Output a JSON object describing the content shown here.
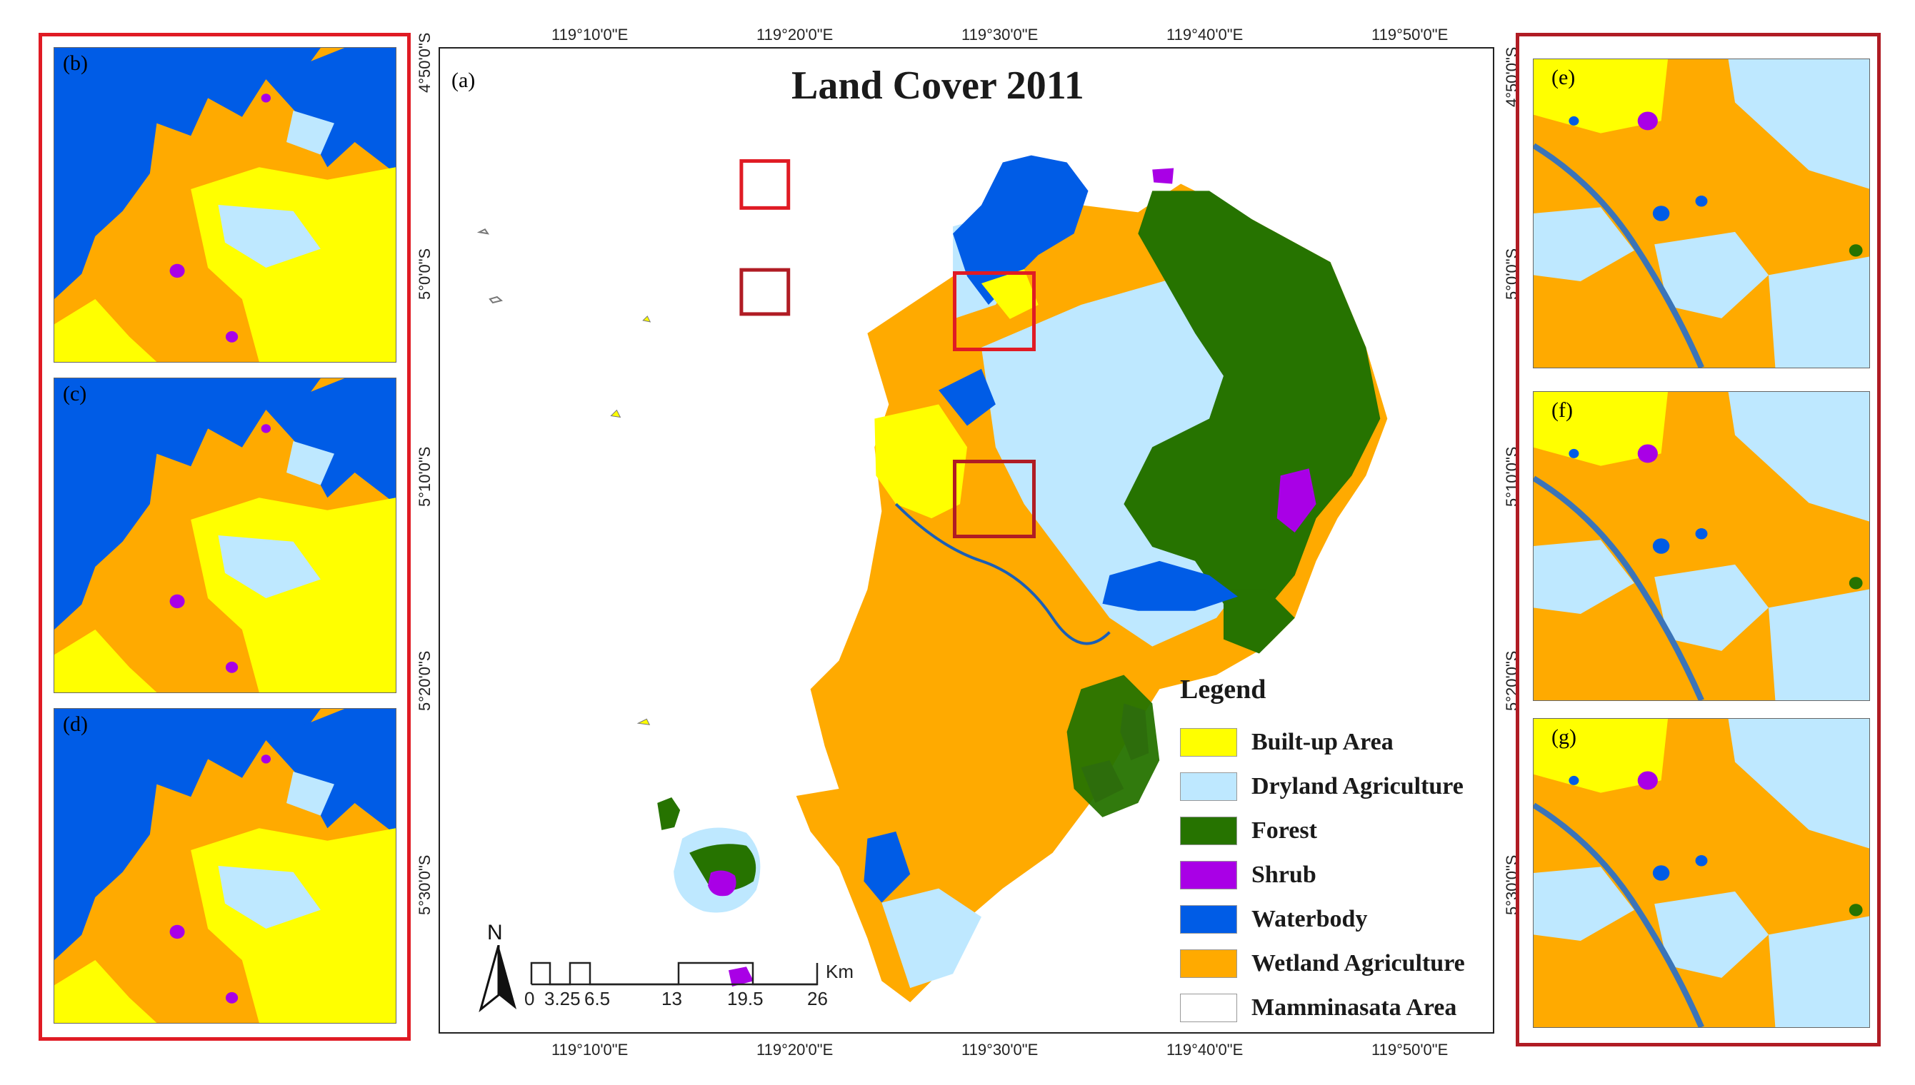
{
  "main_map": {
    "panel_label": "(a)",
    "title": "Land Cover 2011",
    "top_ticks": [
      "119°10'0\"E",
      "119°20'0\"E",
      "119°30'0\"E",
      "119°40'0\"E",
      "119°50'0\"E"
    ],
    "bottom_ticks": [
      "119°10'0\"E",
      "119°20'0\"E",
      "119°30'0\"E",
      "119°40'0\"E",
      "119°50'0\"E"
    ],
    "left_ticks": [
      "5°0'0\"S",
      "5°10'0\"S",
      "5°20'0\"S",
      "5°30'0\"S"
    ],
    "right_ticks": [
      "4°50'0\"S",
      "5°0'0\"S",
      "5°10'0\"S",
      "5°20'0\"S",
      "5°30'0\"S"
    ],
    "right_top_extra": "4°50'0\"S",
    "north_label": "N",
    "scale_labels": [
      "0",
      "3.25",
      "6.5",
      "13",
      "19.5",
      "26"
    ],
    "scale_unit": "Km"
  },
  "legend": {
    "title": "Legend",
    "items": [
      {
        "label": "Built-up Area",
        "color": "#ffff00"
      },
      {
        "label": "Dryland Agriculture",
        "color": "#bee8ff"
      },
      {
        "label": "Forest",
        "color": "#267300"
      },
      {
        "label": "Shrub",
        "color": "#a900e6"
      },
      {
        "label": "Waterbody",
        "color": "#005ce6"
      },
      {
        "label": "Wetland Agriculture",
        "color": "#ffaa00"
      },
      {
        "label": "Mamminasata Area",
        "color": "#ffffff"
      }
    ]
  },
  "side_panels": {
    "left": [
      "(b)",
      "(c)",
      "(d)"
    ],
    "right": [
      "(e)",
      "(f)",
      "(g)"
    ]
  },
  "colors": {
    "builtup": "#ffff00",
    "dryland": "#bee8ff",
    "forest": "#267300",
    "shrub": "#a900e6",
    "water": "#005ce6",
    "wetland": "#ffaa00",
    "frame_red": "#e01b24"
  }
}
